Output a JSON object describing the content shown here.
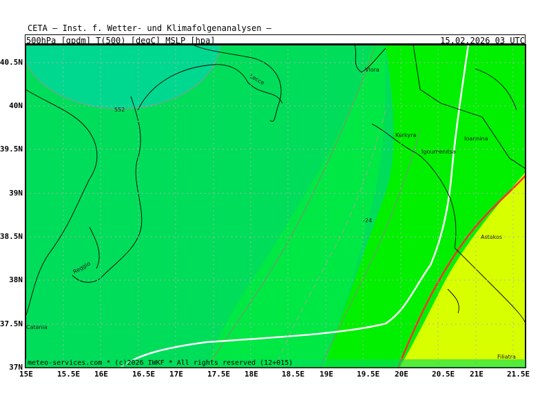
{
  "header": {
    "title": "CETA – Inst. f. Wetter- und Klimafolgenanalysen –",
    "parameters": "500hPa [gpdm] T(500) [degC] MSLP [hpa]",
    "datetime": "15.02.2026 03 UTC"
  },
  "footer": {
    "copyright": "meteo-services.com * (c)2026 IWKF * All rights reserved (12+015)"
  },
  "axes": {
    "lat_labels": [
      "40.5N",
      "40N",
      "39.5N",
      "39N",
      "38.5N",
      "38N",
      "37.5N",
      "37N"
    ],
    "lon_labels": [
      "15E",
      "15.5E",
      "16E",
      "16.5E",
      "17E",
      "17.5E",
      "18E",
      "18.5E",
      "19E",
      "19.5E",
      "20E",
      "20.5E",
      "21E",
      "21.5E"
    ]
  },
  "places": [
    {
      "name": "Lecce"
    },
    {
      "name": "Vlora"
    },
    {
      "name": "Kerkyra"
    },
    {
      "name": "Igoumenitsa"
    },
    {
      "name": "Ioannina"
    },
    {
      "name": "Astakos"
    },
    {
      "name": "Reggio"
    },
    {
      "name": "Catania"
    },
    {
      "name": "Filiatra"
    }
  ],
  "contour_labels": {
    "isotherm_label": "-24",
    "gpdm_label": "552"
  },
  "colors": {
    "band_teal": "#00d890",
    "band_green1": "#00dd5a",
    "band_green2": "#00e844",
    "band_green3": "#00f000",
    "band_yellow": "#d8ff00",
    "coast": "#000000",
    "isobar_white": "#ffffff",
    "front_red": "#ff3030",
    "grid_dots": "#b0b0b0"
  }
}
